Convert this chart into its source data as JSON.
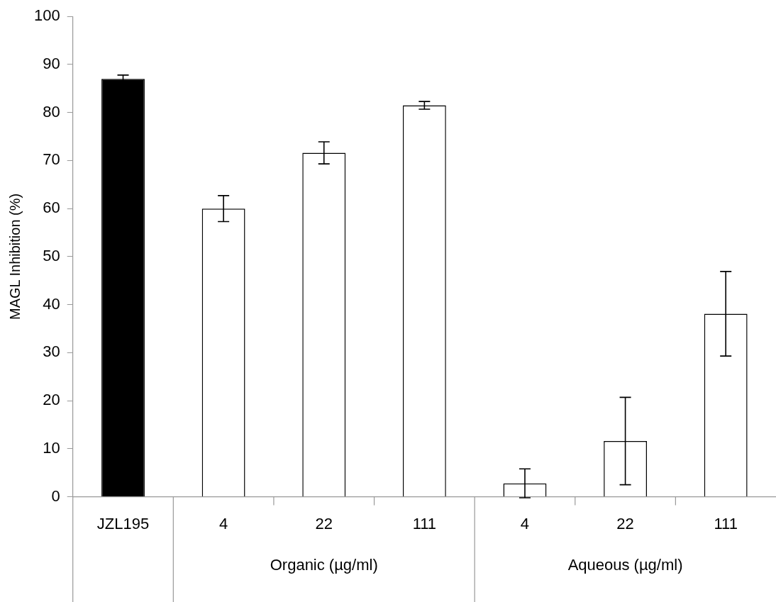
{
  "chart_data": {
    "type": "bar",
    "ylabel": "MAGL Inhibition (%)",
    "categories": [
      "JZL195",
      "4",
      "22",
      "111",
      "4",
      "22",
      "111"
    ],
    "values": [
      87,
      60,
      71.6,
      81.5,
      2.8,
      11.6,
      38.1
    ],
    "errors": [
      0.8,
      2.7,
      2.3,
      0.8,
      3,
      9.1,
      8.8
    ],
    "colors": [
      "#000000",
      "#ffffff",
      "#ffffff",
      "#ffffff",
      "#ffffff",
      "#ffffff",
      "#ffffff"
    ],
    "ylim": [
      0,
      100
    ],
    "yticks": [
      0,
      10,
      20,
      30,
      40,
      50,
      60,
      70,
      80,
      90,
      100
    ],
    "annotations": [
      "Organic (µg/ml)",
      "Aqueous (µg/ml)"
    ]
  }
}
